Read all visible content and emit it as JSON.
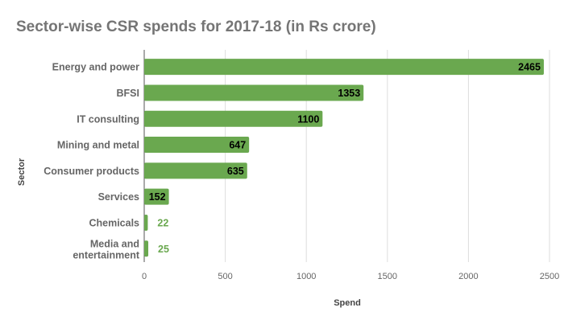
{
  "chart_data": {
    "type": "bar",
    "orientation": "horizontal",
    "title": "Sector-wise CSR spends for 2017-18 (in Rs crore)",
    "xlabel": "Spend",
    "ylabel": "Sector",
    "categories": [
      "Energy and power",
      "BFSI",
      "IT consulting",
      "Mining and metal",
      "Consumer products",
      "Services",
      "Chemicals",
      "Media and entertainment"
    ],
    "values": [
      2465,
      1353,
      1100,
      647,
      635,
      152,
      22,
      25
    ],
    "xlim": [
      0,
      2500
    ],
    "xticks": [
      0,
      500,
      1000,
      1500,
      2000,
      2500
    ],
    "grid": true,
    "legend": "none",
    "colors": {
      "bar": "#6aa84f",
      "label_inside": "#000000",
      "label_outside": "#6aa84f"
    }
  }
}
